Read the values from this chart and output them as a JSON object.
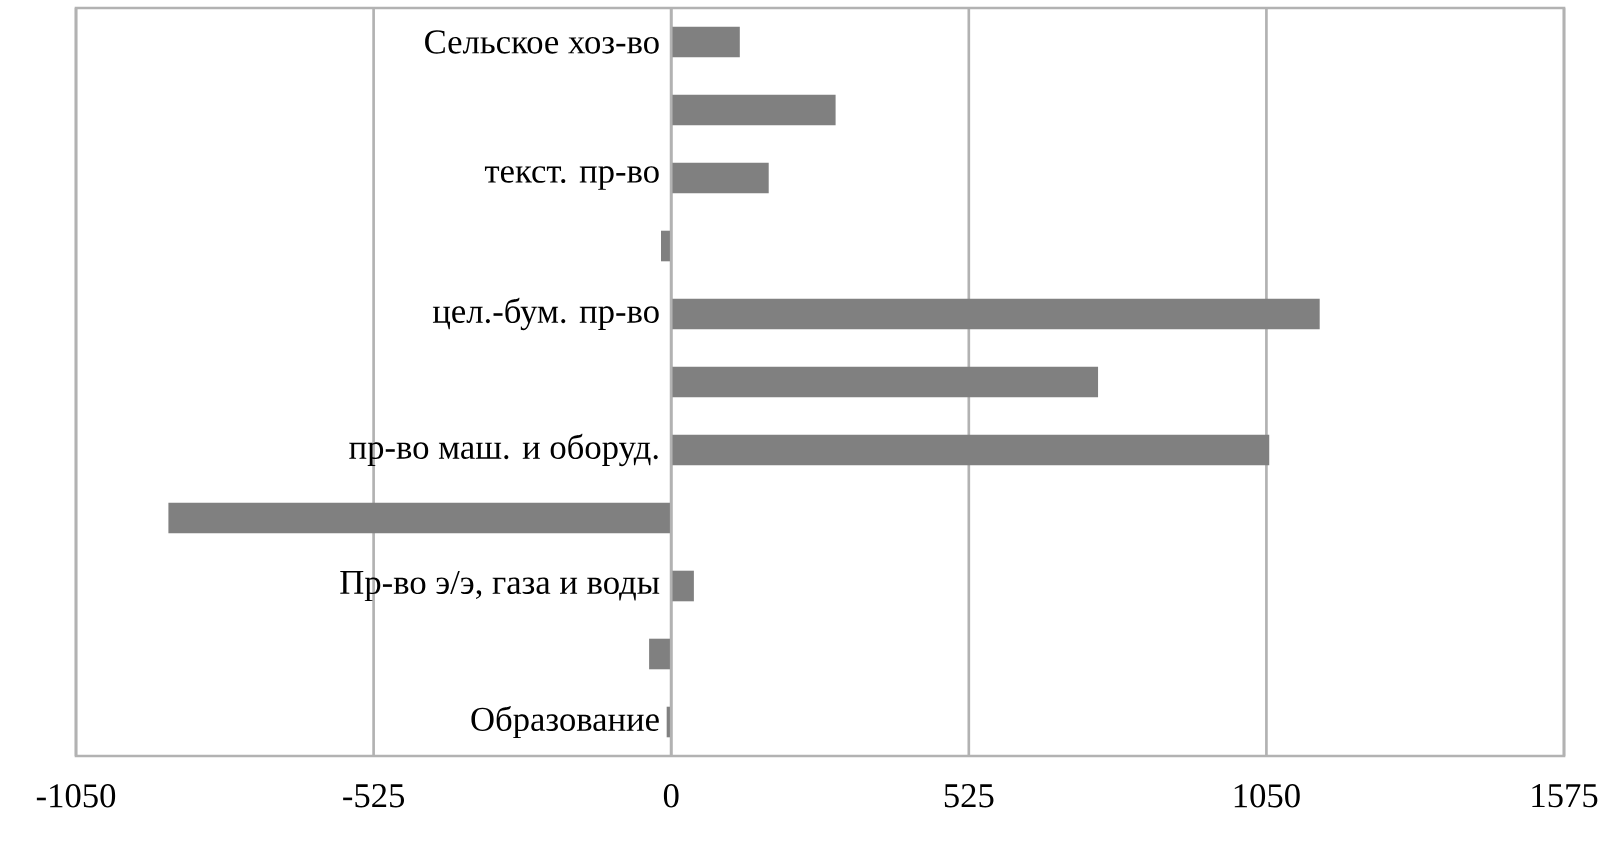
{
  "chart_data": {
    "type": "bar",
    "orientation": "horizontal",
    "categories": [
      "Сельское хоз-во",
      null,
      "текст. пр-во",
      null,
      "цел.-бум. пр-во",
      null,
      "пр-во маш. и оборуд.",
      null,
      "Пр-во э/э, газа и воды",
      null,
      "Образование"
    ],
    "values": [
      121,
      290,
      172,
      -18,
      1144,
      753,
      1055,
      -887,
      40,
      -39,
      -8
    ],
    "color": "#808080",
    "xlim": [
      -1050,
      1575
    ],
    "xticks": [
      -1050,
      -525,
      0,
      525,
      1050,
      1575
    ],
    "grid": true
  }
}
